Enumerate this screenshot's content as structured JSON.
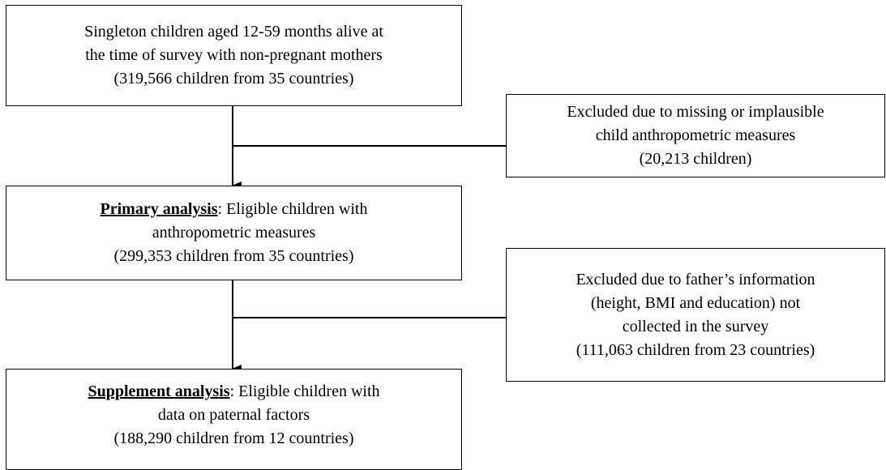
{
  "nodes": [
    {
      "lines": [
        "Singleton children aged 12-59 months alive at",
        "the time of survey with non-pregnant mothers",
        "(319,566 children from 35 countries)"
      ]
    },
    {
      "lead": "Primary analysis",
      "lines": [
        ": Eligible children with",
        "anthropometric measures",
        "(299,353 children from 35 countries)"
      ]
    },
    {
      "lead": "Supplement analysis",
      "lines": [
        ": Eligible children with",
        "data on paternal factors",
        "(188,290 children from 12 countries)"
      ]
    }
  ],
  "exclusions": [
    {
      "lines": [
        "Excluded due to missing or implausible",
        "child anthropometric measures",
        "(20,213 children)"
      ]
    },
    {
      "lines": [
        "Excluded due to father’s information",
        "(height, BMI and education) not",
        "collected in the survey",
        "(111,063 children from 23 countries)"
      ]
    }
  ]
}
